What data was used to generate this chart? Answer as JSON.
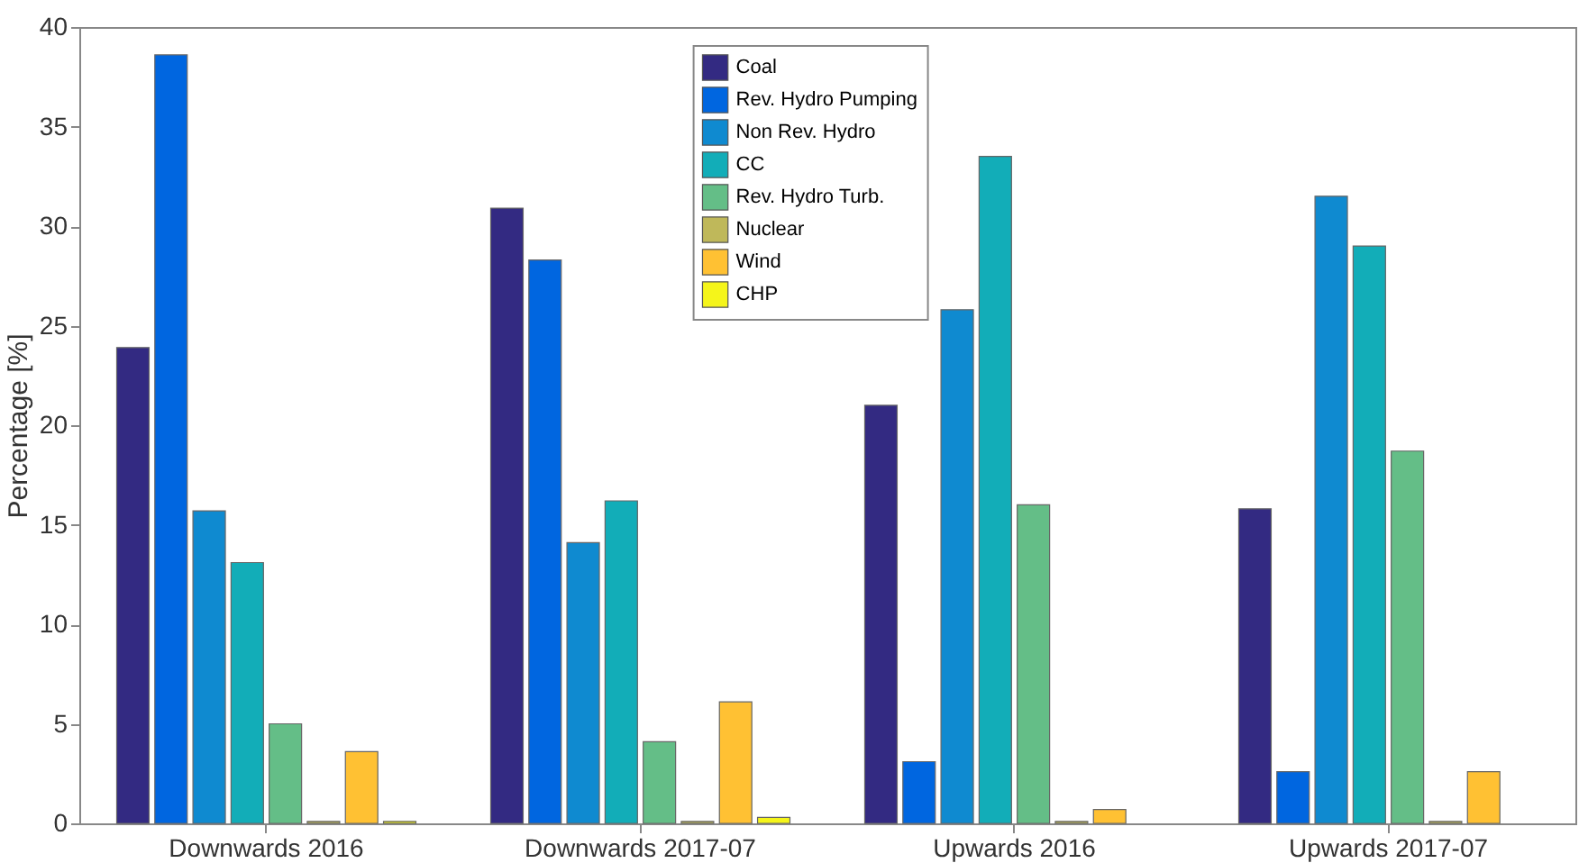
{
  "chart_data": {
    "type": "bar",
    "ylabel": "Percentage [%]",
    "categories": [
      "Downwards 2016",
      "Downwards 2017-07",
      "Upwards 2016",
      "Upwards 2017-07"
    ],
    "series": [
      {
        "name": "Coal",
        "color": "#332a82",
        "values": [
          23.9,
          30.9,
          21.0,
          15.8
        ]
      },
      {
        "name": "Rev. Hydro Pumping",
        "color": "#0066e0",
        "values": [
          38.6,
          28.3,
          3.1,
          2.6
        ]
      },
      {
        "name": "Non Rev. Hydro",
        "color": "#0f8ad0",
        "values": [
          15.7,
          14.1,
          25.8,
          31.5
        ]
      },
      {
        "name": "CC",
        "color": "#12adb8",
        "values": [
          13.1,
          16.2,
          33.5,
          29.0
        ]
      },
      {
        "name": "Rev. Hydro Turb.",
        "color": "#64be87",
        "values": [
          5.0,
          4.1,
          16.0,
          18.7
        ]
      },
      {
        "name": "Nuclear",
        "color": "#bfb85a",
        "values": [
          0.1,
          0.1,
          0.1,
          0.1
        ]
      },
      {
        "name": "Wind",
        "color": "#ffc133",
        "values": [
          3.6,
          6.1,
          0.7,
          2.6
        ]
      },
      {
        "name": "CHP",
        "color": "#f5f51a",
        "values": [
          0.1,
          0.3,
          null,
          null
        ]
      }
    ],
    "ylim": [
      0,
      40
    ],
    "yticks": [
      0,
      5,
      10,
      15,
      20,
      25,
      30,
      35,
      40
    ],
    "grid": false,
    "legend": "top"
  }
}
